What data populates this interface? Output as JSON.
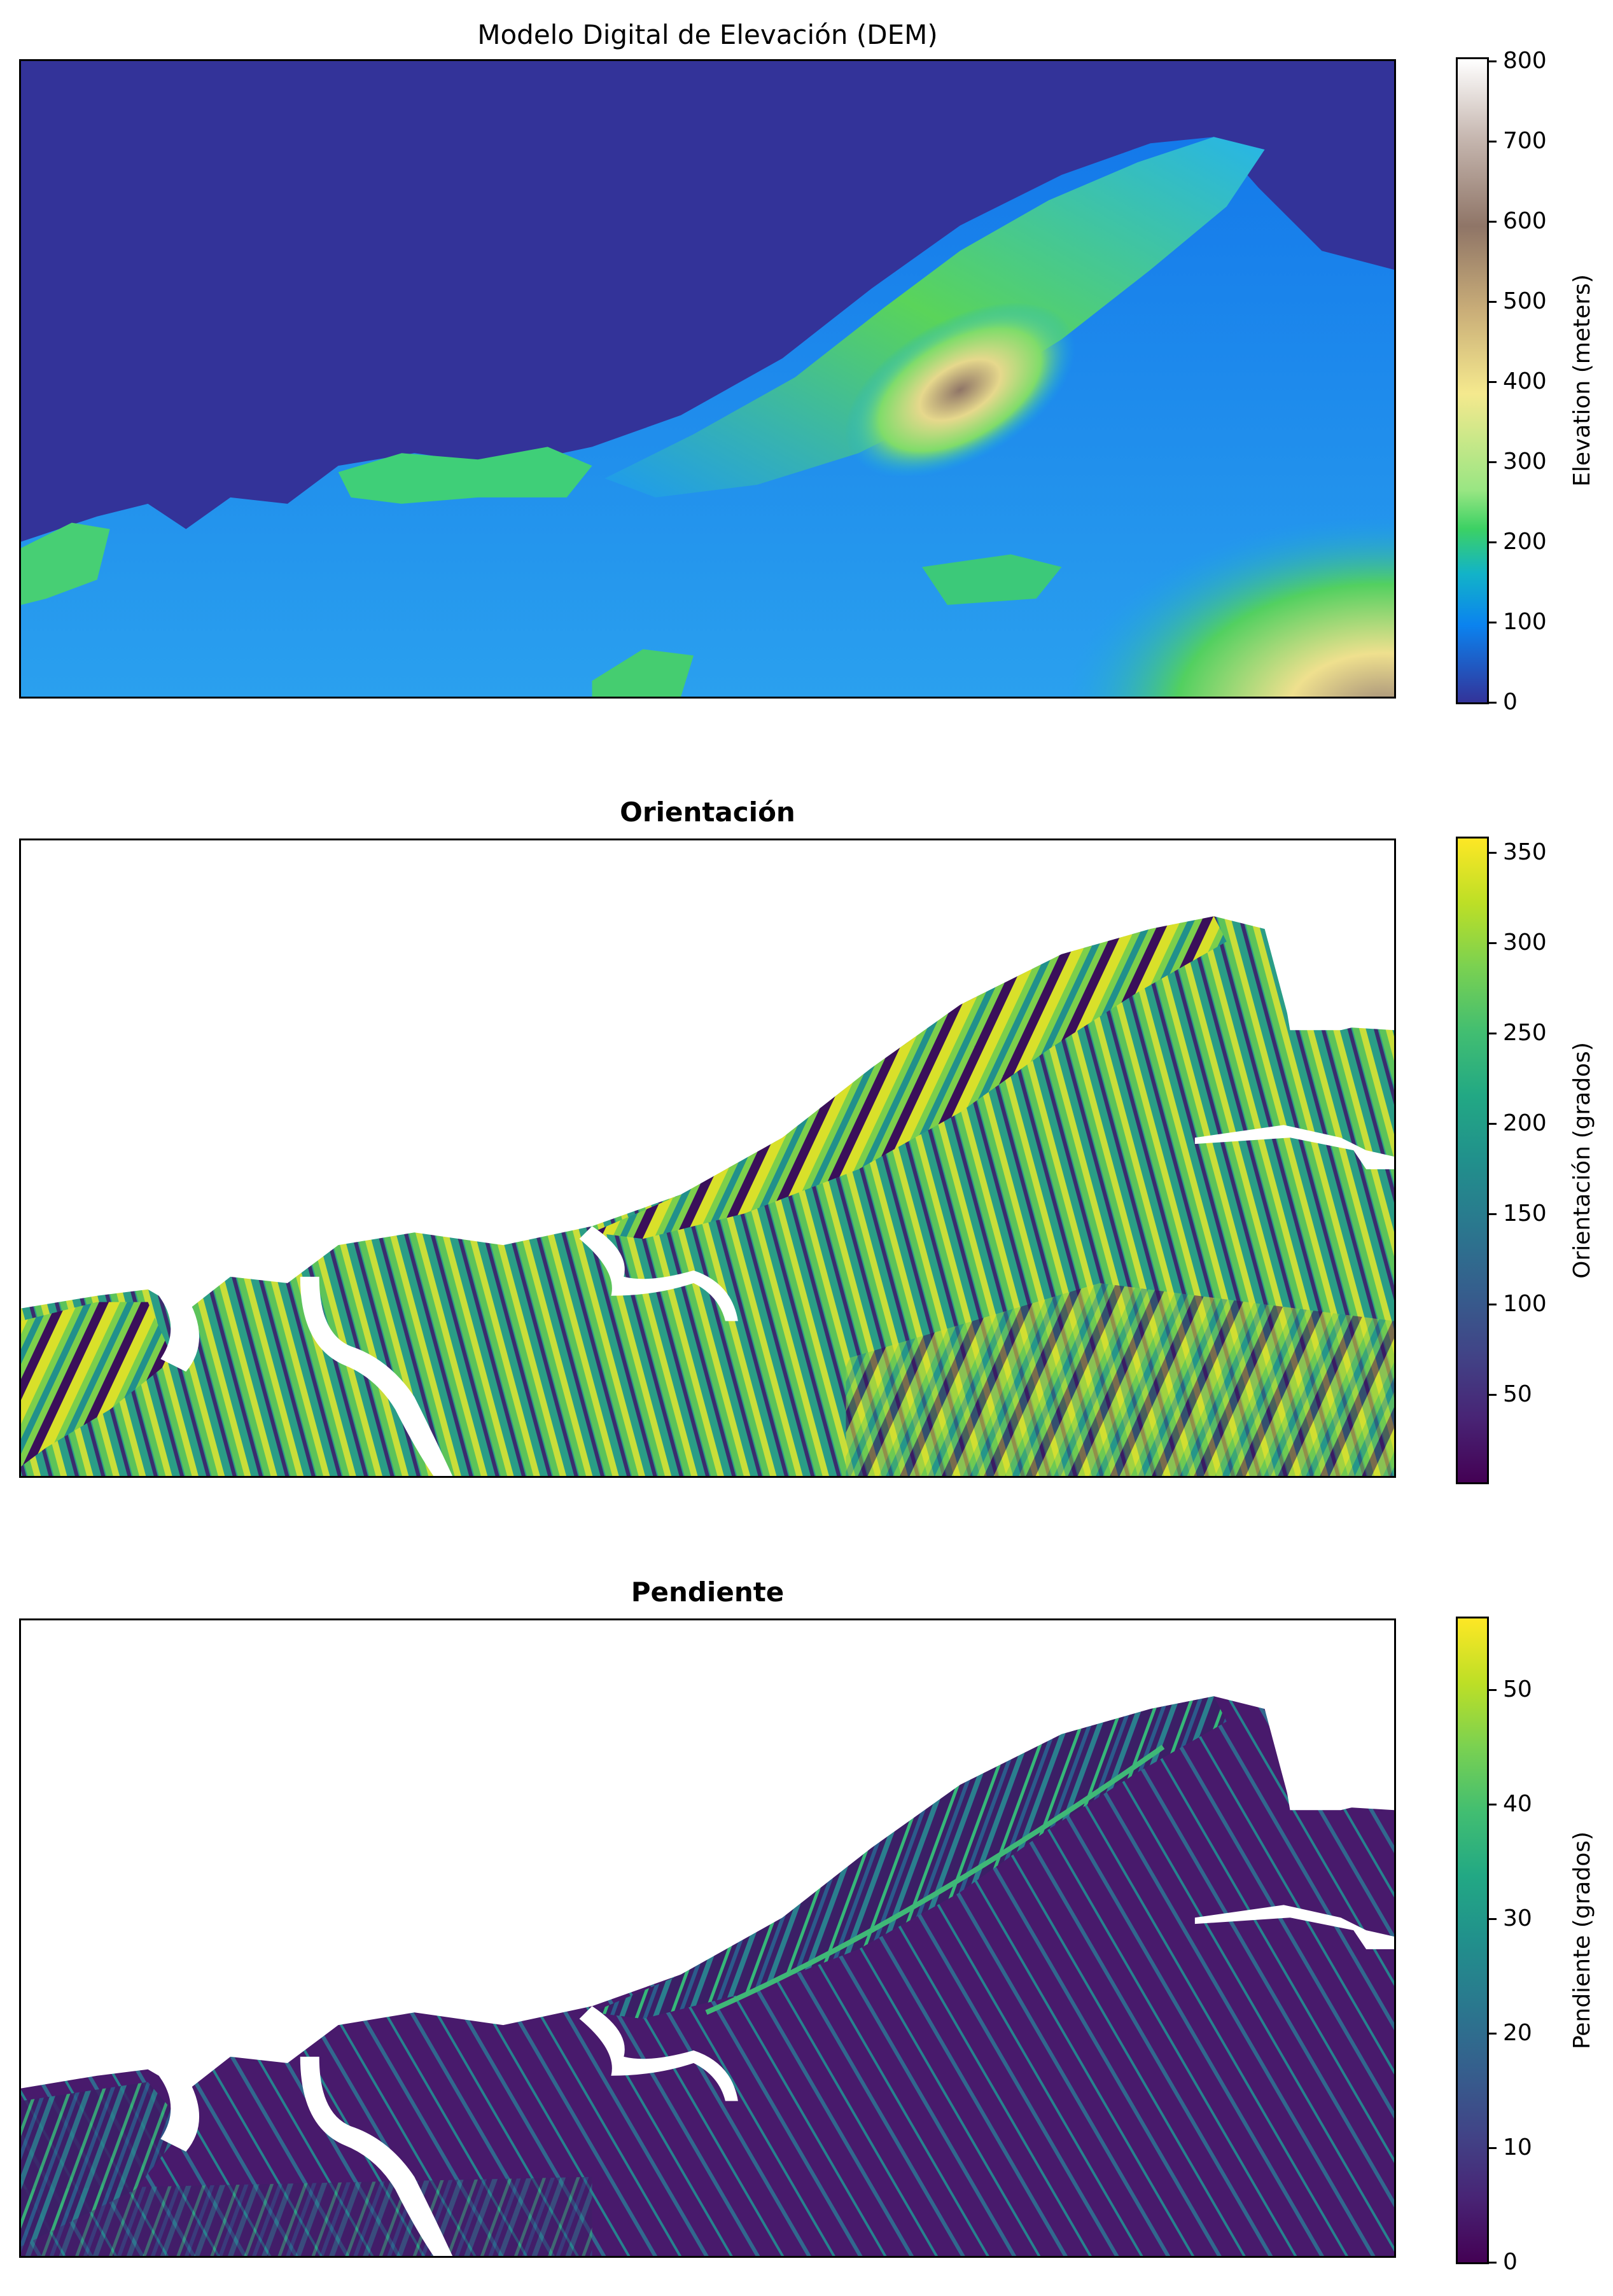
{
  "chart_data": [
    {
      "type": "heatmap",
      "title": "Modelo Digital de Elevación (DEM)",
      "title_bold": false,
      "colormap": "terrain",
      "colorbar": {
        "label": "Elevation (meters)",
        "range": [
          0,
          810
        ],
        "ticks": [
          0,
          100,
          200,
          300,
          400,
          500,
          600,
          700,
          800
        ]
      },
      "grid": false,
      "axes_ticks": false,
      "colors": {
        "sea": "#333399",
        "low": "#0B83EF",
        "mid": "#24C86A",
        "high": "#F5E98E",
        "peak": "#8F7567",
        "top": "#FFFFFF"
      }
    },
    {
      "type": "heatmap",
      "title": "Orientación",
      "title_bold": true,
      "colormap": "viridis",
      "colorbar": {
        "label": "Orientación (grados)",
        "range": [
          0,
          360
        ],
        "ticks": [
          50,
          100,
          150,
          200,
          250,
          300,
          350
        ]
      },
      "grid": false,
      "axes_ticks": false,
      "colors": {
        "min": "#440154",
        "mid": "#21908C",
        "max": "#FDE725",
        "nodata": "#FFFFFF"
      }
    },
    {
      "type": "heatmap",
      "title": "Pendiente",
      "title_bold": true,
      "colormap": "viridis",
      "colorbar": {
        "label": "Pendiente (grados)",
        "range": [
          0,
          56
        ],
        "ticks": [
          0,
          10,
          20,
          30,
          40,
          50
        ]
      },
      "grid": false,
      "axes_ticks": false,
      "colors": {
        "min": "#440154",
        "mid": "#21908C",
        "max": "#FDE725",
        "nodata": "#FFFFFF"
      }
    }
  ]
}
